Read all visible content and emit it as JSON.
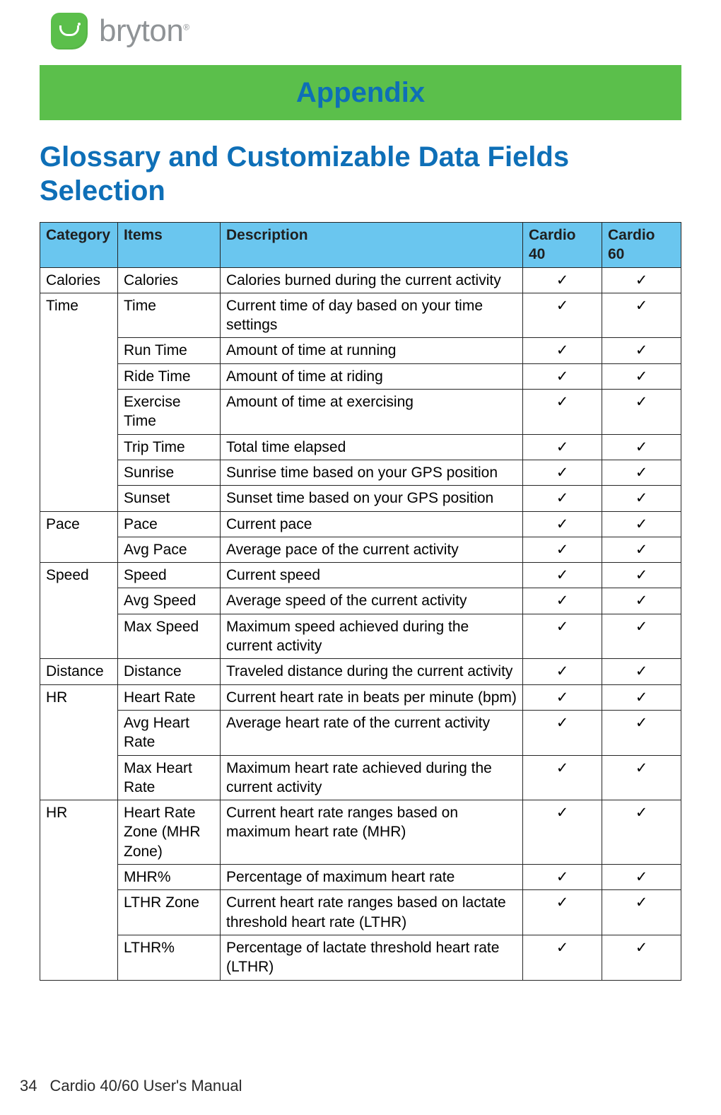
{
  "brand": {
    "name": "bryton",
    "registered_mark": "®"
  },
  "banner": {
    "text": "Appendix",
    "bg_color": "#5bbf4b",
    "text_color": "#0e6fb7"
  },
  "section_title": {
    "text": "Glossary and Customizable Data Fields Selection",
    "color": "#0e6fb7"
  },
  "table": {
    "header_bg": "#6ac6ef",
    "header_text_color": "#1f1f1f",
    "border_color": "#252525",
    "checkmark": "✓",
    "columns": [
      "Category",
      "Items",
      "Description",
      "Cardio 40",
      "Cardio 60"
    ],
    "groups": [
      {
        "category": "Calories",
        "rows": [
          {
            "item": "Calories",
            "desc": "Calories burned during the current activity",
            "c40": true,
            "c60": true
          }
        ]
      },
      {
        "category": "Time",
        "rows": [
          {
            "item": "Time",
            "desc": "Current time of day based on your time settings",
            "c40": true,
            "c60": true
          },
          {
            "item": "Run Time",
            "desc": "Amount of time at running",
            "c40": true,
            "c60": true
          },
          {
            "item": "Ride Time",
            "desc": "Amount of time at riding",
            "c40": true,
            "c60": true
          },
          {
            "item": "Exercise Time",
            "desc": "Amount of time at exercising",
            "c40": true,
            "c60": true
          },
          {
            "item": "Trip Time",
            "desc": "Total time elapsed",
            "c40": true,
            "c60": true
          },
          {
            "item": "Sunrise",
            "desc": "Sunrise time based on your GPS position",
            "c40": true,
            "c60": true
          },
          {
            "item": "Sunset",
            "desc": "Sunset time based on your GPS position",
            "c40": true,
            "c60": true
          }
        ]
      },
      {
        "category": "Pace",
        "rows": [
          {
            "item": "Pace",
            "desc": "Current pace",
            "c40": true,
            "c60": true
          },
          {
            "item": "Avg Pace",
            "desc": "Average pace of the current activity",
            "c40": true,
            "c60": true
          }
        ]
      },
      {
        "category": "Speed",
        "rows": [
          {
            "item": "Speed",
            "desc": "Current speed",
            "c40": true,
            "c60": true
          },
          {
            "item": "Avg Speed",
            "desc": "Average speed of the current activity",
            "c40": true,
            "c60": true
          },
          {
            "item": "Max Speed",
            "desc": "Maximum speed achieved during the current activity",
            "c40": true,
            "c60": true
          }
        ]
      },
      {
        "category": "Distance",
        "rows": [
          {
            "item": "Distance",
            "desc": "Traveled distance during the current activity",
            "c40": true,
            "c60": true
          }
        ]
      },
      {
        "category": "HR",
        "rows": [
          {
            "item": "Heart Rate",
            "desc": "Current heart rate in beats per minute (bpm)",
            "c40": true,
            "c60": true
          },
          {
            "item": "Avg Heart Rate",
            "desc": "Average heart rate of the current activity",
            "c40": true,
            "c60": true
          },
          {
            "item": "Max Heart Rate",
            "desc": "Maximum heart rate achieved during the current activity",
            "c40": true,
            "c60": true
          }
        ]
      },
      {
        "category": "HR",
        "rows": [
          {
            "item": "Heart Rate Zone (MHR Zone)",
            "desc": "Current heart rate ranges based on maximum heart rate (MHR)",
            "c40": true,
            "c60": true
          },
          {
            "item": "MHR%",
            "desc": "Percentage of maximum heart rate",
            "c40": true,
            "c60": true
          },
          {
            "item": "LTHR Zone",
            "desc": "Current heart rate ranges based on lactate threshold heart rate (LTHR)",
            "c40": true,
            "c60": true
          },
          {
            "item": "LTHR%",
            "desc": "Percentage of lactate threshold heart rate (LTHR)",
            "c40": true,
            "c60": true
          }
        ]
      }
    ]
  },
  "footer": {
    "page_number": "34",
    "manual_title": "Cardio 40/60 User's Manual"
  }
}
